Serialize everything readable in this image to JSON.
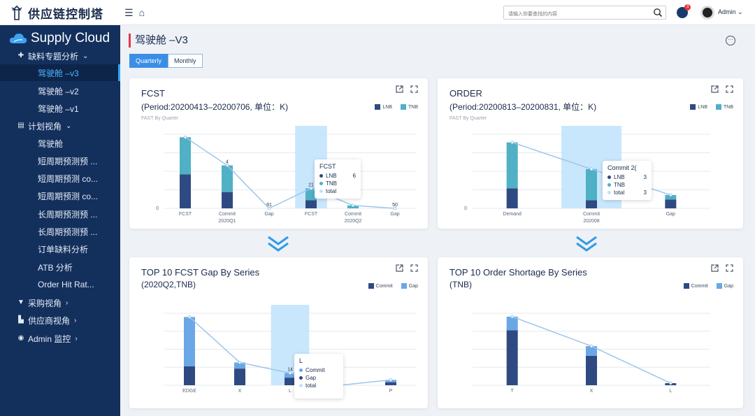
{
  "app": {
    "title": "供应链控制塔",
    "search_placeholder": "请输入你要查找的内容",
    "notification_count": "3",
    "user": "Admin"
  },
  "sidebar": {
    "logo": "Supply Cloud",
    "groups": [
      {
        "label": "缺料专题分析",
        "icon": "puzzle-icon",
        "items": [
          "驾驶舱 –v3",
          "驾驶舱 –v2",
          "驾驶舱 –v1"
        ]
      },
      {
        "label": "计划视角",
        "icon": "calendar-icon",
        "items": [
          "驾驶舱",
          "短周期预测预 ...",
          "短周期预测 co...",
          "短周期预测 co...",
          "长周期预测预 ...",
          "长周期预测预 ...",
          "订单缺料分析",
          "ATB 分析",
          "Order Hit Rat..."
        ]
      },
      {
        "label": "采购视角",
        "icon": "cart-icon",
        "items": []
      },
      {
        "label": "供应商视角",
        "icon": "building-icon",
        "items": []
      },
      {
        "label": "Admin 监控",
        "icon": "monitor-icon",
        "items": []
      }
    ]
  },
  "page": {
    "title": "驾驶舱 –V3",
    "tabs": [
      "Quarterly",
      "Monthly"
    ],
    "active_tab": "Quarterly"
  },
  "cards": {
    "fcst": {
      "title": "FCST",
      "subtitle": "(Period:20200413–20200706, 单位：K)",
      "note": "FAST By Quarter",
      "legend": [
        "LNB",
        "TNB"
      ],
      "tooltip": {
        "title": "FCST",
        "rows": [
          "LNB",
          "TNB",
          "total"
        ],
        "values": [
          "6",
          "",
          ""
        ]
      },
      "chart_data": {
        "type": "bar",
        "categories": [
          "FCST",
          "Commit",
          "Gap",
          "FCST",
          "Commit",
          "Gap"
        ],
        "groups": [
          "2020Q1",
          "2020Q2"
        ],
        "series": [
          {
            "name": "LNB",
            "values": [
              46,
              22,
              0,
              11,
              0,
              0
            ]
          },
          {
            "name": "TNB",
            "values": [
              50,
              36,
              0,
              16,
              4,
              0
            ]
          }
        ],
        "data_labels": [
          "",
          "4",
          "81",
          "21",
          "",
          "50"
        ],
        "y_ticks": [
          "0"
        ],
        "highlight_index": 3
      }
    },
    "order": {
      "title": "ORDER",
      "subtitle": "(Period:20200813–20200831, 单位：K)",
      "note": "FAST By Quarter",
      "legend": [
        "LNB",
        "TNB"
      ],
      "tooltip": {
        "title": "Commit 2(",
        "rows": [
          "LNB",
          "TNB",
          "total"
        ],
        "values": [
          "3",
          "",
          "3"
        ]
      },
      "chart_data": {
        "type": "bar",
        "categories": [
          "Demand",
          "Commit",
          "Gap"
        ],
        "groups": [
          "202008"
        ],
        "series": [
          {
            "name": "LNB",
            "values": [
              27,
              11,
              12
            ]
          },
          {
            "name": "TNB",
            "values": [
              62,
              42,
              6
            ]
          }
        ],
        "y_ticks": [
          "0"
        ],
        "highlight_index": 1
      }
    },
    "fcst_gap": {
      "title": "TOP 10 FCST Gap By Series",
      "subtitle": "(2020Q2,TNB)",
      "legend": [
        "Commit",
        "Gap"
      ],
      "tooltip": {
        "title": "L",
        "rows": [
          "Commit",
          "Gap",
          "total"
        ]
      },
      "chart_data": {
        "type": "bar",
        "categories": [
          "EDGE",
          "X",
          "L",
          "",
          "P"
        ],
        "series": [
          {
            "name": "Commit",
            "values": [
              25,
              22,
              10,
              0,
              4
            ]
          },
          {
            "name": "Gap",
            "values": [
              65,
              8,
              6,
              0,
              3
            ]
          }
        ],
        "data_labels": [
          "",
          "",
          "14",
          "",
          ""
        ],
        "highlight_index": 2
      }
    },
    "order_shortage": {
      "title": "TOP 10 Order Shortage By Series",
      "subtitle": "(TNB)",
      "legend": [
        "Commit",
        "Gap"
      ],
      "chart_data": {
        "type": "bar",
        "categories": [
          "T",
          "X",
          "L"
        ],
        "series": [
          {
            "name": "Commit",
            "values": [
              80,
              43,
              3
            ]
          },
          {
            "name": "Gap",
            "values": [
              20,
              14,
              0
            ]
          }
        ]
      }
    }
  },
  "colors": {
    "dark_bar": "#2f4a82",
    "teal_bar": "#4fb0c6",
    "light_bar": "#6aa7e6",
    "highlight": "#bfe3fb",
    "sidebar": "#13305d"
  }
}
